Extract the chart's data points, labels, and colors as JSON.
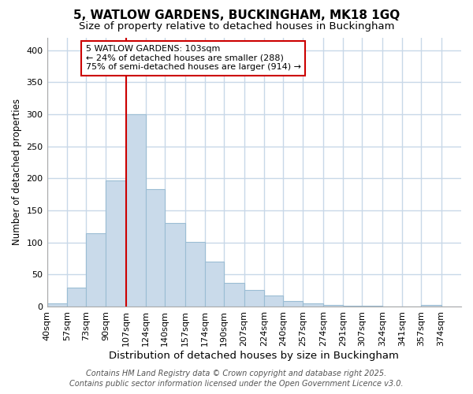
{
  "title": "5, WATLOW GARDENS, BUCKINGHAM, MK18 1GQ",
  "subtitle": "Size of property relative to detached houses in Buckingham",
  "xlabel": "Distribution of detached houses by size in Buckingham",
  "ylabel": "Number of detached properties",
  "bar_edges": [
    40,
    57,
    73,
    90,
    107,
    124,
    140,
    157,
    174,
    190,
    207,
    224,
    240,
    257,
    274,
    291,
    307,
    324,
    341,
    357,
    374
  ],
  "bar_heights": [
    5,
    29,
    114,
    197,
    300,
    183,
    130,
    101,
    70,
    37,
    26,
    17,
    8,
    5,
    3,
    1,
    1,
    0,
    0,
    2
  ],
  "bar_color": "#c9daea",
  "bar_edgecolor": "#9bbdd4",
  "redline_x": 107,
  "annotation_text": "5 WATLOW GARDENS: 103sqm\n← 24% of detached houses are smaller (288)\n75% of semi-detached houses are larger (914) →",
  "annotation_box_facecolor": "#ffffff",
  "annotation_box_edgecolor": "#cc0000",
  "ylim": [
    0,
    420
  ],
  "yticks": [
    0,
    50,
    100,
    150,
    200,
    250,
    300,
    350,
    400
  ],
  "footer_line1": "Contains HM Land Registry data © Crown copyright and database right 2025.",
  "footer_line2": "Contains public sector information licensed under the Open Government Licence v3.0.",
  "background_color": "#ffffff",
  "plot_bg_color": "#ffffff",
  "grid_color": "#c8d8e8",
  "title_fontsize": 11,
  "subtitle_fontsize": 9.5,
  "xlabel_fontsize": 9.5,
  "ylabel_fontsize": 8.5,
  "tick_fontsize": 8,
  "annotation_fontsize": 8,
  "footer_fontsize": 7
}
